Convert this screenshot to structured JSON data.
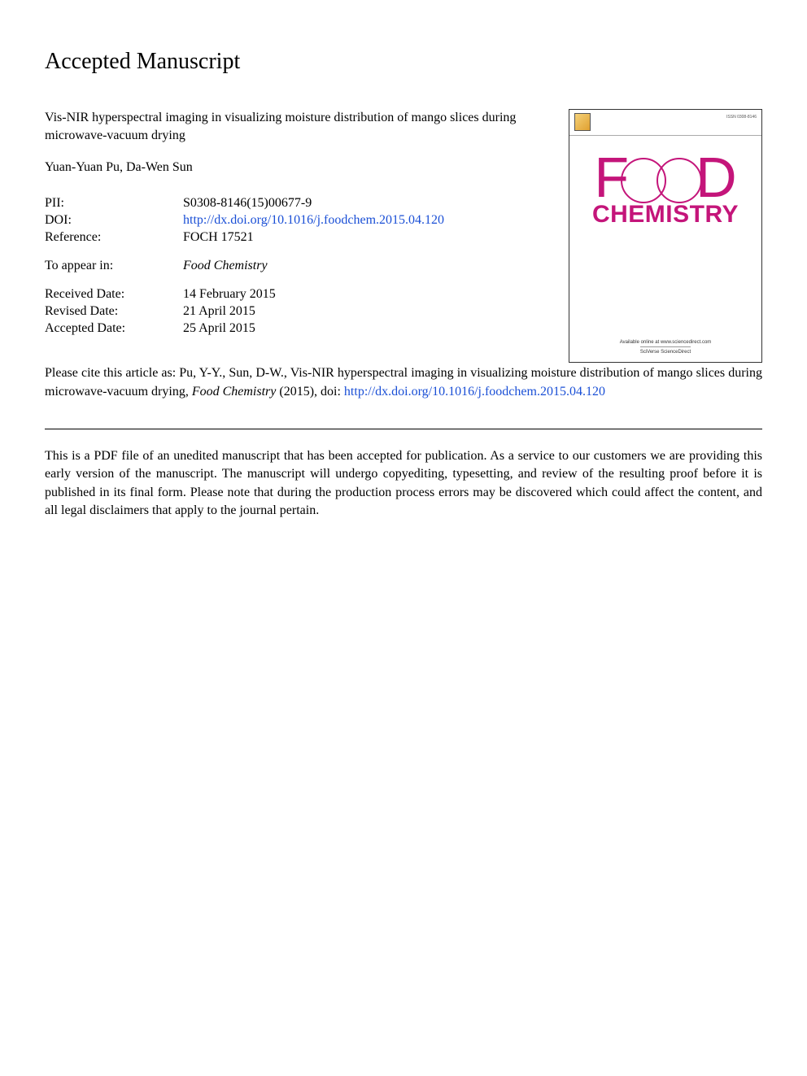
{
  "page_heading": "Accepted Manuscript",
  "article_title": "Vis-NIR hyperspectral imaging in visualizing moisture distribution of mango slices during microwave-vacuum drying",
  "authors": "Yuan-Yuan Pu, Da-Wen Sun",
  "meta": {
    "pii_label": "PII:",
    "pii_value": "S0308-8146(15)00677-9",
    "doi_label": "DOI:",
    "doi_value": "http://dx.doi.org/10.1016/j.foodchem.2015.04.120",
    "reference_label": "Reference:",
    "reference_value": "FOCH 17521",
    "appear_label": "To appear in:",
    "appear_value": "Food Chemistry",
    "received_label": "Received Date:",
    "received_value": "14 February 2015",
    "revised_label": "Revised Date:",
    "revised_value": "21 April 2015",
    "accepted_label": "Accepted Date:",
    "accepted_value": "25 April 2015"
  },
  "citation": {
    "prefix": "Please cite this article as: Pu, Y-Y., Sun, D-W., Vis-NIR hyperspectral imaging in visualizing moisture distribution of mango slices during microwave-vacuum drying, ",
    "journal": "Food Chemistry",
    "year": " (2015), doi: ",
    "doi_link": "http://dx.doi.org/10.1016/j.foodchem.2015.04.120"
  },
  "disclaimer": "This is a PDF file of an unedited manuscript that has been accepted for publication. As a service to our customers we are providing this early version of the manuscript. The manuscript will undergo copyediting, typesetting, and review of the resulting proof before it is published in its final form. Please note that during the production process errors may be discovered which could affect the content, and all legal disclaimers that apply to the journal pertain.",
  "cover": {
    "issn_text": "ISSN 0308-8146",
    "logo_top": "F  D",
    "logo_bottom": "CHEMISTRY",
    "availability": "Available online at www.sciencedirect.com",
    "sciencedirect": "SciVerse ScienceDirect",
    "brand_color": "#c4157a",
    "border_color": "#333333",
    "bg_color": "#ffffff"
  },
  "colors": {
    "text": "#000000",
    "link": "#1a4fd6",
    "background": "#ffffff"
  }
}
